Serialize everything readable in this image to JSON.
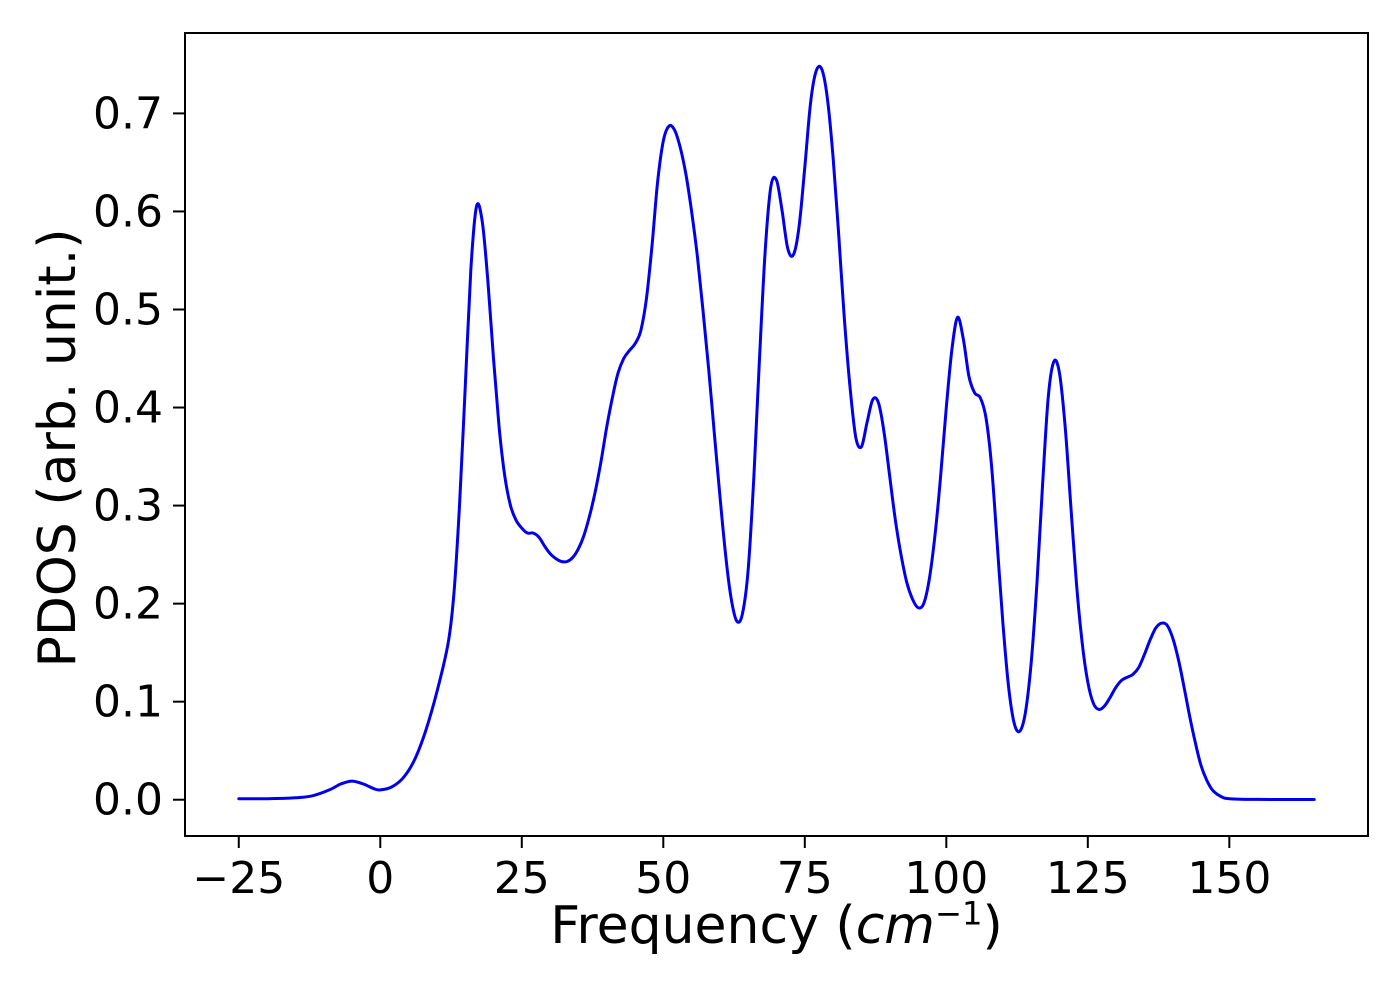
{
  "figure": {
    "background": "#ffffff"
  },
  "chart_data": {
    "type": "line",
    "title": "",
    "xlabel": "Frequency (cm−1)",
    "xlabel_parts": {
      "prefix": "Frequency (",
      "italic": "cm",
      "superscript": "−1",
      "suffix": ")"
    },
    "ylabel": "PDOS (arb. unit.)",
    "line_color": "#0000ee",
    "grid": false,
    "legend": "none",
    "xlim": [
      -34.5,
      174.5
    ],
    "ylim": [
      -0.037,
      0.782
    ],
    "x_ticks": {
      "values": [
        -25,
        0,
        25,
        50,
        75,
        100,
        125,
        150
      ],
      "labels": [
        "−25",
        "0",
        "25",
        "50",
        "75",
        "100",
        "125",
        "150"
      ]
    },
    "y_ticks": {
      "values": [
        0.0,
        0.1,
        0.2,
        0.3,
        0.4,
        0.5,
        0.6,
        0.7
      ],
      "labels": [
        "0.0",
        "0.1",
        "0.2",
        "0.3",
        "0.4",
        "0.5",
        "0.6",
        "0.7"
      ]
    },
    "series": [
      {
        "name": "PDOS",
        "x": [
          -25,
          -20,
          -15,
          -12,
          -9,
          -7,
          -5,
          -3,
          -1,
          0,
          2,
          4,
          6,
          8,
          10,
          12,
          13,
          14,
          15,
          16,
          17,
          18,
          19,
          20,
          21,
          22,
          23,
          24,
          25,
          26,
          27,
          28,
          29,
          30,
          31,
          32,
          33,
          34,
          35,
          36,
          37,
          38,
          39,
          40,
          41,
          42,
          43,
          44,
          45,
          46,
          47,
          48,
          49,
          50,
          51,
          52,
          53,
          54,
          55,
          56,
          57,
          58,
          59,
          60,
          61,
          62,
          63,
          64,
          65,
          66,
          67,
          68,
          69,
          70,
          71,
          72,
          73,
          74,
          75,
          76,
          77,
          78,
          79,
          80,
          81,
          82,
          83,
          84,
          85,
          86,
          87,
          88,
          89,
          90,
          91,
          92,
          93,
          94,
          95,
          96,
          97,
          98,
          99,
          100,
          101,
          102,
          103,
          104,
          105,
          106,
          107,
          108,
          109,
          110,
          111,
          112,
          113,
          114,
          115,
          116,
          117,
          118,
          119,
          120,
          121,
          122,
          123,
          124,
          125,
          126,
          127,
          128,
          129,
          130,
          131,
          132,
          133,
          134,
          135,
          136,
          137,
          138,
          139,
          140,
          141,
          142,
          143,
          144,
          145,
          146,
          147,
          148,
          149,
          150,
          152,
          155,
          160,
          165
        ],
        "y": [
          0.001,
          0.001,
          0.002,
          0.004,
          0.01,
          0.016,
          0.019,
          0.016,
          0.011,
          0.01,
          0.013,
          0.022,
          0.04,
          0.07,
          0.11,
          0.16,
          0.21,
          0.3,
          0.42,
          0.54,
          0.605,
          0.59,
          0.53,
          0.45,
          0.38,
          0.33,
          0.3,
          0.285,
          0.277,
          0.272,
          0.272,
          0.268,
          0.259,
          0.251,
          0.246,
          0.243,
          0.243,
          0.247,
          0.256,
          0.27,
          0.29,
          0.315,
          0.345,
          0.38,
          0.41,
          0.435,
          0.45,
          0.458,
          0.465,
          0.478,
          0.51,
          0.565,
          0.63,
          0.672,
          0.687,
          0.683,
          0.665,
          0.638,
          0.6,
          0.555,
          0.5,
          0.44,
          0.375,
          0.31,
          0.25,
          0.205,
          0.182,
          0.19,
          0.235,
          0.33,
          0.45,
          0.56,
          0.625,
          0.632,
          0.6,
          0.562,
          0.556,
          0.585,
          0.645,
          0.71,
          0.743,
          0.745,
          0.715,
          0.655,
          0.575,
          0.49,
          0.42,
          0.37,
          0.36,
          0.385,
          0.408,
          0.405,
          0.375,
          0.33,
          0.285,
          0.25,
          0.222,
          0.205,
          0.196,
          0.2,
          0.225,
          0.27,
          0.33,
          0.4,
          0.46,
          0.492,
          0.47,
          0.432,
          0.415,
          0.41,
          0.39,
          0.34,
          0.26,
          0.18,
          0.115,
          0.078,
          0.07,
          0.09,
          0.14,
          0.22,
          0.32,
          0.41,
          0.447,
          0.435,
          0.38,
          0.3,
          0.22,
          0.16,
          0.12,
          0.098,
          0.092,
          0.096,
          0.105,
          0.115,
          0.122,
          0.125,
          0.128,
          0.135,
          0.148,
          0.163,
          0.175,
          0.18,
          0.178,
          0.165,
          0.143,
          0.115,
          0.085,
          0.058,
          0.035,
          0.02,
          0.01,
          0.005,
          0.002,
          0.001,
          0.0005,
          0.0003,
          0.0002,
          0.0002
        ]
      }
    ]
  }
}
